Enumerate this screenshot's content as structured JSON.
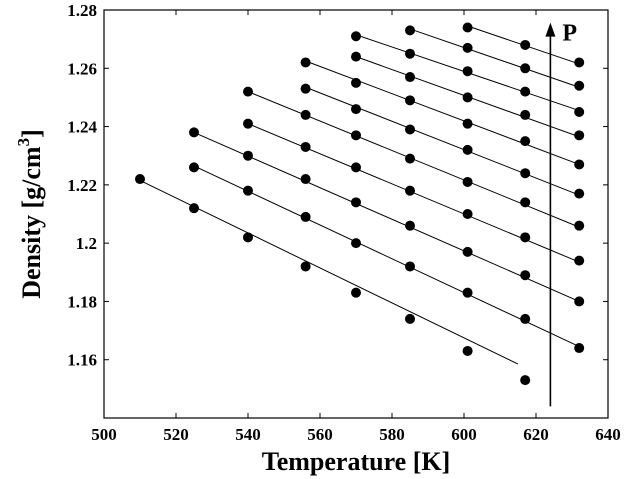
{
  "chart_data": {
    "type": "scatter",
    "title": "",
    "xlabel": "Temperature [K]",
    "ylabel_main": "Density [g/cm",
    "ylabel_sup": "3",
    "ylabel_close": "]",
    "xlim": [
      500,
      640
    ],
    "ylim": [
      1.14,
      1.28
    ],
    "xticks": [
      500,
      520,
      540,
      560,
      580,
      600,
      620,
      640
    ],
    "yticks": [
      1.16,
      1.18,
      1.2,
      1.22,
      1.24,
      1.26,
      1.28
    ],
    "ytick_labels": [
      "1.16",
      "1.18",
      "1.2",
      "1.22",
      "1.24",
      "1.26",
      "1.28"
    ],
    "grid": false,
    "annotation": {
      "text": "P",
      "arrow_x": 624,
      "arrow_from_y": 1.144,
      "arrow_to_y": 1.275
    },
    "series": [
      {
        "x": [
          510,
          525,
          540,
          556,
          570,
          585,
          601,
          617
        ],
        "y": [
          1.222,
          1.212,
          1.202,
          1.192,
          1.183,
          1.174,
          1.163,
          1.153
        ],
        "line": [
          [
            510,
            1.2215
          ],
          [
            615,
            1.1585
          ]
        ]
      },
      {
        "x": [
          525,
          540,
          556,
          570,
          585,
          601,
          617,
          632
        ],
        "y": [
          1.226,
          1.218,
          1.209,
          1.2,
          1.192,
          1.183,
          1.174,
          1.164
        ],
        "line": [
          [
            525,
            1.2265
          ],
          [
            632,
            1.1645
          ]
        ]
      },
      {
        "x": [
          525,
          540,
          556,
          570,
          585,
          601,
          617,
          632
        ],
        "y": [
          1.238,
          1.23,
          1.222,
          1.214,
          1.206,
          1.197,
          1.189,
          1.18
        ],
        "line": [
          [
            525,
            1.238
          ],
          [
            632,
            1.18
          ]
        ]
      },
      {
        "x": [
          540,
          556,
          570,
          585,
          601,
          617,
          632
        ],
        "y": [
          1.241,
          1.233,
          1.226,
          1.218,
          1.21,
          1.202,
          1.194
        ],
        "line": [
          [
            540,
            1.241
          ],
          [
            632,
            1.1935
          ]
        ]
      },
      {
        "x": [
          540,
          556,
          570,
          585,
          601,
          617,
          632
        ],
        "y": [
          1.252,
          1.244,
          1.237,
          1.229,
          1.221,
          1.214,
          1.206
        ],
        "line": [
          [
            540,
            1.252
          ],
          [
            632,
            1.2055
          ]
        ]
      },
      {
        "x": [
          556,
          570,
          585,
          601,
          617,
          632
        ],
        "y": [
          1.253,
          1.246,
          1.239,
          1.232,
          1.224,
          1.217
        ],
        "line": [
          [
            556,
            1.2535
          ],
          [
            632,
            1.2165
          ]
        ]
      },
      {
        "x": [
          556,
          570,
          585,
          601,
          617,
          632
        ],
        "y": [
          1.262,
          1.255,
          1.249,
          1.241,
          1.235,
          1.227
        ],
        "line": [
          [
            556,
            1.2625
          ],
          [
            632,
            1.227
          ]
        ]
      },
      {
        "x": [
          570,
          585,
          601,
          617,
          632
        ],
        "y": [
          1.264,
          1.257,
          1.25,
          1.244,
          1.237
        ],
        "line": [
          [
            570,
            1.264
          ],
          [
            632,
            1.2365
          ]
        ]
      },
      {
        "x": [
          570,
          585,
          601,
          617,
          632
        ],
        "y": [
          1.271,
          1.265,
          1.259,
          1.252,
          1.245
        ],
        "line": [
          [
            570,
            1.2715
          ],
          [
            632,
            1.2455
          ]
        ]
      },
      {
        "x": [
          585,
          601,
          617,
          632
        ],
        "y": [
          1.273,
          1.267,
          1.26,
          1.254
        ],
        "line": [
          [
            585,
            1.2735
          ],
          [
            632,
            1.2535
          ]
        ]
      },
      {
        "x": [
          601,
          617,
          632
        ],
        "y": [
          1.274,
          1.268,
          1.262
        ],
        "line": [
          [
            601,
            1.2745
          ],
          [
            632,
            1.2615
          ]
        ]
      }
    ]
  }
}
